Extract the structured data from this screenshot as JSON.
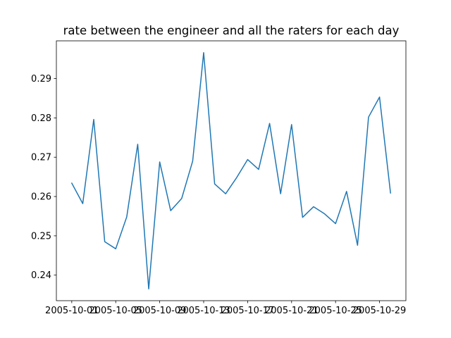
{
  "chart_data": {
    "type": "line",
    "title": "rate between the engineer and all the raters for each day",
    "xlabel": "",
    "ylabel": "",
    "x": [
      "2005-10-01",
      "2005-10-02",
      "2005-10-03",
      "2005-10-04",
      "2005-10-05",
      "2005-10-06",
      "2005-10-07",
      "2005-10-08",
      "2005-10-09",
      "2005-10-10",
      "2005-10-11",
      "2005-10-12",
      "2005-10-13",
      "2005-10-14",
      "2005-10-15",
      "2005-10-16",
      "2005-10-17",
      "2005-10-18",
      "2005-10-19",
      "2005-10-20",
      "2005-10-21",
      "2005-10-22",
      "2005-10-23",
      "2005-10-24",
      "2005-10-25",
      "2005-10-26",
      "2005-10-27",
      "2005-10-28",
      "2005-10-29",
      "2005-10-30"
    ],
    "series": [
      {
        "values": [
          0.2634,
          0.2582,
          0.2796,
          0.2485,
          0.2467,
          0.2548,
          0.2733,
          0.2365,
          0.2688,
          0.2564,
          0.2595,
          0.269,
          0.2966,
          0.2632,
          0.2607,
          0.2648,
          0.2694,
          0.2669,
          0.2786,
          0.2607,
          0.2783,
          0.2547,
          0.2574,
          0.2556,
          0.2531,
          0.2613,
          0.2476,
          0.2802,
          0.2853,
          0.2609
        ],
        "color": "#1f77b4"
      }
    ],
    "x_ticks": [
      "2005-10-01",
      "2005-10-05",
      "2005-10-09",
      "2005-10-13",
      "2005-10-17",
      "2005-10-21",
      "2005-10-25",
      "2005-10-29"
    ],
    "y_ticks": [
      "0.24",
      "0.25",
      "0.26",
      "0.27",
      "0.28",
      "0.29"
    ],
    "xlim": [
      "2005-09-29.6",
      "2005-10-31.4"
    ],
    "ylim": [
      0.2335,
      0.2996
    ],
    "grid": false,
    "legend": "none"
  }
}
